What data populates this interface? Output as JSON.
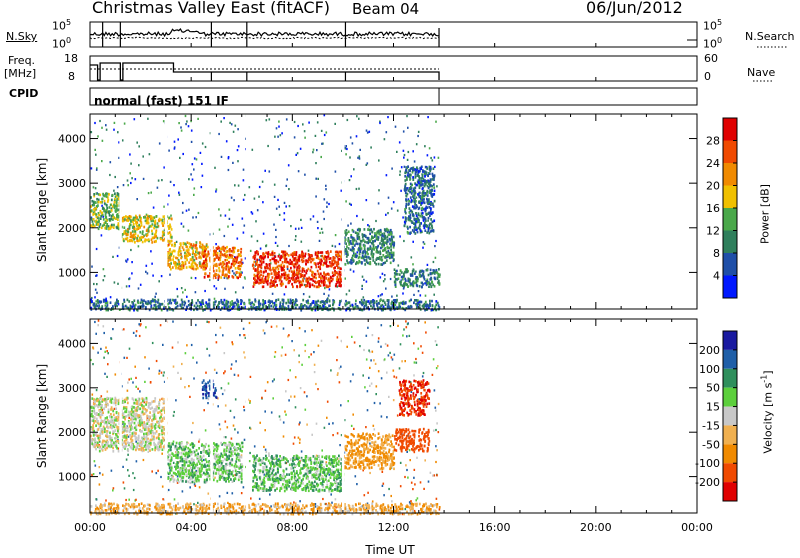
{
  "header": {
    "title": "Christmas Valley East (fitACF)",
    "beam": "Beam 04",
    "date": "06/Jun/2012"
  },
  "panels": {
    "nsky": {
      "label": "N.Sky",
      "tick_hi": "10^5",
      "tick_lo": "10^0",
      "right_label": "N.Search",
      "right_tick_hi": "10^5",
      "right_tick_lo": "10^0"
    },
    "freq": {
      "label": "Freq.",
      "unit": "[MHz]",
      "tick_hi": "18",
      "tick_lo": "8",
      "right_label": "Nave",
      "right_tick_hi": "60",
      "right_tick_lo": "0"
    },
    "cpid": {
      "label": "CPID",
      "value": "normal (fast) 151 IF"
    }
  },
  "colors": {
    "power": [
      "#0018ff",
      "#1f4fa8",
      "#2f7f5c",
      "#4aa84a",
      "#f0c000",
      "#f08a00",
      "#f04a00",
      "#e00000"
    ],
    "velocity": [
      "#e00000",
      "#f04a00",
      "#f08a00",
      "#f0b050",
      "#c8c8c8",
      "#5ccf3c",
      "#2f8f5c",
      "#1f5fa8",
      "#1a1aa0"
    ]
  },
  "chart_data": [
    {
      "type": "heatmap",
      "quantity": "Power",
      "xlabel": "",
      "ylabel": "Slant Range [km]",
      "x_ticks": [
        "00:00",
        "04:00",
        "08:00",
        "12:00",
        "16:00",
        "20:00",
        "00:00"
      ],
      "xlim_hours": [
        0,
        24
      ],
      "y_ticks": [
        1000,
        2000,
        3000,
        4000
      ],
      "ylim": [
        180,
        4550
      ],
      "colorbar": {
        "label": "Power [dB]",
        "ticks": [
          4,
          8,
          12,
          16,
          20,
          24,
          28
        ],
        "range": [
          0,
          32
        ]
      },
      "data_extent_hours": [
        0,
        13.8
      ],
      "regions": [
        {
          "t": [
            0.0,
            1.2
          ],
          "r": [
            2000,
            2800
          ],
          "v": 14
        },
        {
          "t": [
            1.2,
            3.2
          ],
          "r": [
            1700,
            2300
          ],
          "v": 18
        },
        {
          "t": [
            3.0,
            4.6
          ],
          "r": [
            1100,
            1700
          ],
          "v": 20
        },
        {
          "t": [
            4.4,
            6.0
          ],
          "r": [
            900,
            1600
          ],
          "v": 24
        },
        {
          "t": [
            6.4,
            10.0
          ],
          "r": [
            700,
            1500
          ],
          "v": 28
        },
        {
          "t": [
            10.0,
            12.0
          ],
          "r": [
            1200,
            2000
          ],
          "v": 10
        },
        {
          "t": [
            12.0,
            13.8
          ],
          "r": [
            700,
            1100
          ],
          "v": 10
        },
        {
          "t": [
            12.4,
            13.6
          ],
          "r": [
            1900,
            3400
          ],
          "v": 8
        },
        {
          "t": [
            0.0,
            13.8
          ],
          "r": [
            180,
            420
          ],
          "v": 8
        }
      ]
    },
    {
      "type": "heatmap",
      "quantity": "Velocity",
      "xlabel": "Time UT",
      "ylabel": "Slant Range [km]",
      "x_ticks": [
        "00:00",
        "04:00",
        "08:00",
        "12:00",
        "16:00",
        "20:00",
        "00:00"
      ],
      "xlim_hours": [
        0,
        24
      ],
      "y_ticks": [
        1000,
        2000,
        3000,
        4000
      ],
      "ylim": [
        180,
        4550
      ],
      "colorbar": {
        "label": "Velocity [m s^-1]",
        "ticks": [
          "200",
          "100",
          "50",
          "15",
          "-15",
          "-50",
          "-100",
          "-200"
        ]
      },
      "data_extent_hours": [
        0,
        13.8
      ],
      "regions": [
        {
          "t": [
            0.0,
            3.0
          ],
          "r": [
            1600,
            2800
          ],
          "v": 0
        },
        {
          "t": [
            3.0,
            6.0
          ],
          "r": [
            900,
            1800
          ],
          "v": 30
        },
        {
          "t": [
            6.4,
            10.0
          ],
          "r": [
            700,
            1500
          ],
          "v": 40
        },
        {
          "t": [
            10.0,
            12.0
          ],
          "r": [
            1200,
            2000
          ],
          "v": -60
        },
        {
          "t": [
            12.0,
            13.4
          ],
          "r": [
            1600,
            2100
          ],
          "v": -150
        },
        {
          "t": [
            12.2,
            13.4
          ],
          "r": [
            2400,
            3200
          ],
          "v": -200
        },
        {
          "t": [
            4.4,
            5.0
          ],
          "r": [
            2800,
            3200
          ],
          "v": 180
        },
        {
          "t": [
            0.0,
            13.8
          ],
          "r": [
            180,
            420
          ],
          "v": -40
        }
      ]
    }
  ]
}
